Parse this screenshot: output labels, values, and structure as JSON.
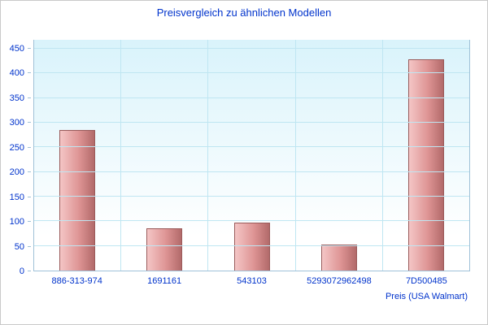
{
  "chart_data": {
    "type": "bar",
    "title": "Preisvergleich zu ähnlichen Modellen",
    "categories": [
      "886-313-974",
      "1691161",
      "543103",
      "5293072962498",
      "7D500485"
    ],
    "values": [
      285,
      85,
      98,
      52,
      428
    ],
    "xlabel": "Preis (USA Walmart)",
    "ylabel": "",
    "ylim": [
      0,
      450
    ],
    "ytick_step": 50,
    "grid": true,
    "legend": "none",
    "colors": {
      "title_text": "#0033cc",
      "axis_text": "#0033cc",
      "bar_light": "#f4c6c6",
      "bar_mid": "#de9494",
      "bar_dark": "#b26a6a",
      "bar_border": "#9a5a5a",
      "gridline": "#bfe6f2",
      "axis_line": "#9fc1d8",
      "plot_bg_top": "#d9f3fb",
      "plot_bg_bottom": "#ffffff"
    }
  }
}
